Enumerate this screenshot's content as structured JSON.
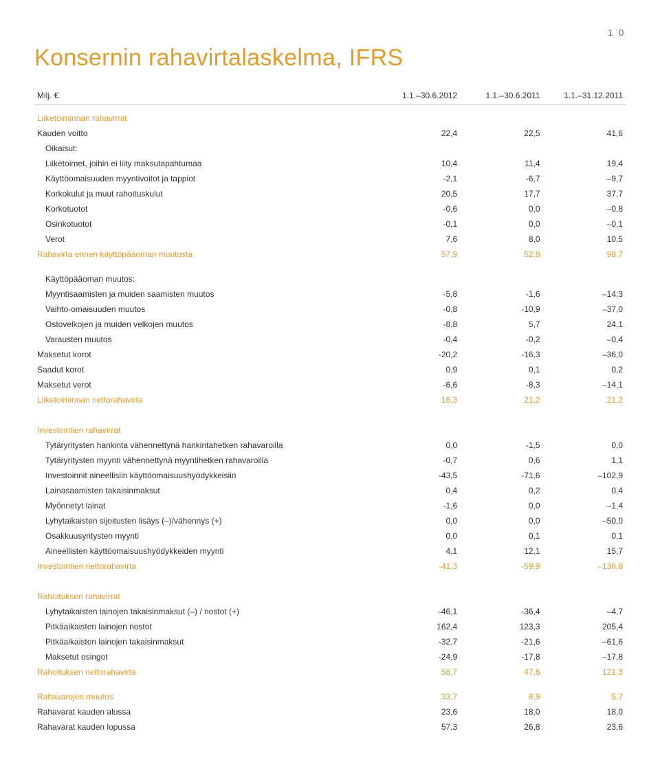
{
  "page_number": "1 0",
  "title": "Konsernin rahavirtalaskelma, IFRS",
  "colors": {
    "accent": "#e29b2d",
    "text": "#333333",
    "border": "#cccccc",
    "background": "#ffffff"
  },
  "fonts": {
    "title_size": 34,
    "title_weight": 300,
    "body_size": 12
  },
  "columns": {
    "c0": "Milj. €",
    "c1": "1.1.–30.6.2012",
    "c2": "1.1.–30.6.2011",
    "c3": "1.1.–31.12.2011"
  },
  "rows": [
    {
      "type": "section",
      "label": "Liiketoiminnan rahavirrat"
    },
    {
      "type": "data",
      "label": "Kauden voitto",
      "v": [
        "22,4",
        "22,5",
        "41,6"
      ]
    },
    {
      "type": "sub_label",
      "label": "Oikaisut:"
    },
    {
      "type": "sub",
      "label": "Liiketoimet, joihin ei liity maksutapahtumaa",
      "v": [
        "10,4",
        "11,4",
        "19,4"
      ]
    },
    {
      "type": "sub",
      "label": "Käyttöomaisuuden myyntivoitot ja tappiot",
      "v": [
        "-2,1",
        "-6,7",
        "–9,7"
      ]
    },
    {
      "type": "sub",
      "label": "Korkokulut ja muut rahoituskulut",
      "v": [
        "20,5",
        "17,7",
        "37,7"
      ]
    },
    {
      "type": "sub",
      "label": "Korkotuotot",
      "v": [
        "-0,6",
        "0,0",
        "–0,8"
      ]
    },
    {
      "type": "sub",
      "label": "Osinkotuotot",
      "v": [
        "-0,1",
        "0,0",
        "–0,1"
      ]
    },
    {
      "type": "sub",
      "label": "Verot",
      "v": [
        "7,6",
        "8,0",
        "10,5"
      ]
    },
    {
      "type": "highlight",
      "label": "Rahavirta ennen käyttöpääoman muutosta",
      "v": [
        "57,9",
        "52,8",
        "98,7"
      ]
    },
    {
      "type": "spacer"
    },
    {
      "type": "sub_label",
      "label": "Käyttöpääoman muutos:"
    },
    {
      "type": "sub",
      "label": "Myyntisaamisten ja muiden saamisten muutos",
      "v": [
        "-5,8",
        "-1,6",
        "–14,3"
      ]
    },
    {
      "type": "sub",
      "label": "Vaihto-omaisuuden muutos",
      "v": [
        "-0,8",
        "-10,9",
        "–37,0"
      ]
    },
    {
      "type": "sub",
      "label": "Ostovelkojen ja muiden velkojen muutos",
      "v": [
        "-8,8",
        "5,7",
        "24,1"
      ]
    },
    {
      "type": "sub",
      "label": "Varausten muutos",
      "v": [
        "-0,4",
        "-0,2",
        "–0,4"
      ]
    },
    {
      "type": "data",
      "label": "Maksetut korot",
      "v": [
        "-20,2",
        "-16,3",
        "–36,0"
      ]
    },
    {
      "type": "data",
      "label": "Saadut korot",
      "v": [
        "0,9",
        "0,1",
        "0,2"
      ]
    },
    {
      "type": "data",
      "label": "Maksetut verot",
      "v": [
        "-6,6",
        "-8,3",
        "–14,1"
      ]
    },
    {
      "type": "highlight",
      "label": "Liiketoiminnan nettorahavirta",
      "v": [
        "16,3",
        "21,2",
        "21,2"
      ]
    },
    {
      "type": "spacer"
    },
    {
      "type": "section",
      "label": "Investointien rahavirrat"
    },
    {
      "type": "sub",
      "label": "Tytäryritysten hankinta vähennettynä hankintahetken rahavaroilla",
      "v": [
        "0,0",
        "-1,5",
        "0,0"
      ]
    },
    {
      "type": "sub",
      "label": "Tytäryritysten myynti vähennettynä myyntihetken rahavaroilla",
      "v": [
        "-0,7",
        "0,6",
        "1,1"
      ]
    },
    {
      "type": "sub",
      "label": "Investoinnit aineellisiin käyttöomaisuushyödykkeisiin",
      "v": [
        "-43,5",
        "-71,6",
        "–102,9"
      ]
    },
    {
      "type": "sub",
      "label": "Lainasaamisten takaisinmaksut",
      "v": [
        "0,4",
        "0,2",
        "0,4"
      ]
    },
    {
      "type": "sub",
      "label": "Myönnetyt lainat",
      "v": [
        "-1,6",
        "0,0",
        "–1,4"
      ]
    },
    {
      "type": "sub",
      "label": "Lyhytaikaisten sijoitusten lisäys (–)/vähennys (+)",
      "v": [
        "0,0",
        "0,0",
        "–50,0"
      ]
    },
    {
      "type": "sub",
      "label": "Osakkuusyritysten myynti",
      "v": [
        "0,0",
        "0,1",
        "0,1"
      ]
    },
    {
      "type": "sub",
      "label": "Aineellisten käyttöomaisuushyödykkeiden myynti",
      "v": [
        "4,1",
        "12,1",
        "15,7"
      ]
    },
    {
      "type": "highlight",
      "label": "Investointien nettorahavirta",
      "v": [
        "-41,3",
        "-59,9",
        "–136,8"
      ]
    },
    {
      "type": "spacer"
    },
    {
      "type": "section",
      "label": "Rahoituksen rahavirrat"
    },
    {
      "type": "sub",
      "label": "Lyhytaikaisten lainojen takaisinmaksut (–) / nostot (+)",
      "v": [
        "-46,1",
        "-36,4",
        "–4,7"
      ]
    },
    {
      "type": "sub",
      "label": "Pitkäaikaisten lainojen nostot",
      "v": [
        "162,4",
        "123,3",
        "205,4"
      ]
    },
    {
      "type": "sub",
      "label": "Pitkäaikaisten lainojen takaisinmaksut",
      "v": [
        "-32,7",
        "-21,6",
        "–61,6"
      ]
    },
    {
      "type": "sub",
      "label": "Maksetut osingot",
      "v": [
        "-24,9",
        "-17,8",
        "–17,8"
      ]
    },
    {
      "type": "highlight",
      "label": "Rahoituksen nettorahavirta",
      "v": [
        "58,7",
        "47,6",
        "121,3"
      ]
    },
    {
      "type": "spacer"
    },
    {
      "type": "highlight",
      "label": "Rahavarojen muutos",
      "v": [
        "33,7",
        "8,9",
        "5,7"
      ]
    },
    {
      "type": "data",
      "label": "Rahavarat kauden alussa",
      "v": [
        "23,6",
        "18,0",
        "18,0"
      ]
    },
    {
      "type": "data",
      "label": "Rahavarat kauden lopussa",
      "v": [
        "57,3",
        "26,8",
        "23,6"
      ]
    }
  ]
}
